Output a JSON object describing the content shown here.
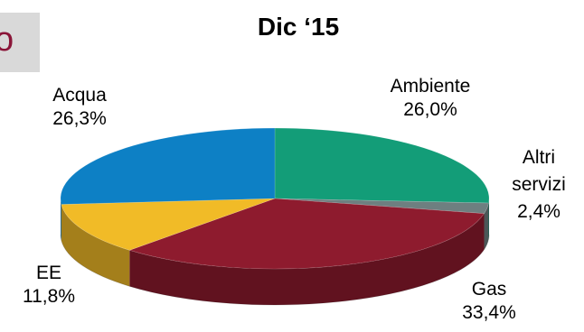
{
  "header": {
    "tab_text": "o"
  },
  "chart_data": {
    "type": "pie",
    "title": "Dic ‘15",
    "slices": [
      {
        "name": "Ambiente",
        "label": "Ambiente",
        "value_label": "26,0%",
        "value": 26.0,
        "color": "#139d78"
      },
      {
        "name": "Altri servizi",
        "label": "Altri servizi",
        "value_label": "2,4%",
        "value": 2.4,
        "color": "#6e7f80"
      },
      {
        "name": "Gas",
        "label": "Gas",
        "value_label": "33,4%",
        "value": 33.4,
        "color": "#8e1b2e"
      },
      {
        "name": "EE",
        "label": "EE",
        "value_label": "11,8%",
        "value": 11.8,
        "color": "#f1bb27"
      },
      {
        "name": "Acqua",
        "label": "Acqua",
        "value_label": "26,3%",
        "value": 26.3,
        "color": "#0d80c5"
      }
    ],
    "style": "3d-pie"
  }
}
